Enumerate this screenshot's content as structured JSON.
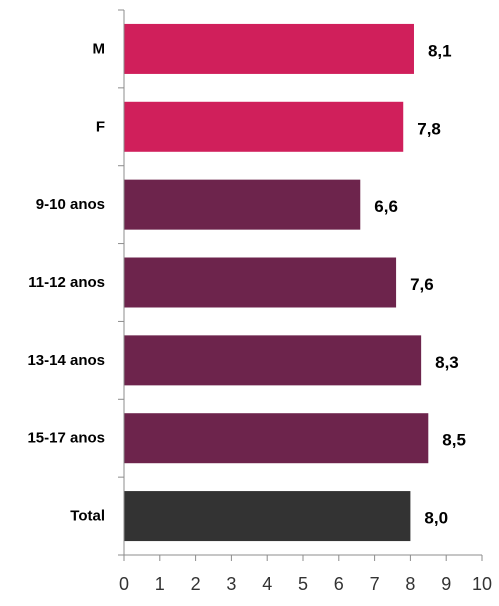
{
  "chart_data": {
    "type": "bar",
    "orientation": "horizontal",
    "categories": [
      "M",
      "F",
      "9-10 anos",
      "11-12 anos",
      "13-14 anos",
      "15-17 anos",
      "Total"
    ],
    "values": [
      8.1,
      7.8,
      6.6,
      7.6,
      8.3,
      8.5,
      8.0
    ],
    "value_labels": [
      "8,1",
      "7,8",
      "6,6",
      "7,6",
      "8,3",
      "8,5",
      "8,0"
    ],
    "bar_colors": [
      "#d01f5b",
      "#d01f5b",
      "#6d244c",
      "#6d244c",
      "#6d244c",
      "#6d244c",
      "#333333"
    ],
    "xlim": [
      0,
      10
    ],
    "x_ticks": [
      "0",
      "1",
      "2",
      "3",
      "4",
      "5",
      "6",
      "7",
      "8",
      "9",
      "10"
    ],
    "title": "",
    "xlabel": "",
    "ylabel": "",
    "grid": false,
    "legend": "none"
  }
}
